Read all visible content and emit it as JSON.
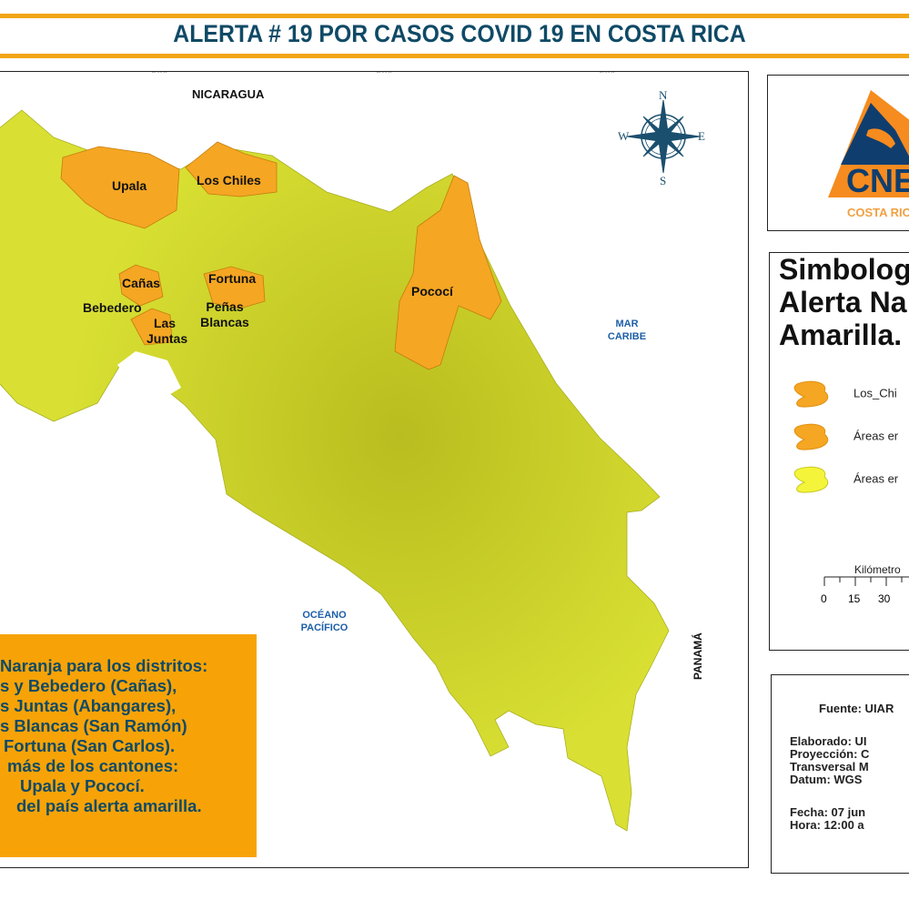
{
  "title": "ALERTA # 19 POR CASOS COVID 19 EN COSTA RICA",
  "colors": {
    "accent_bar": "#f2a516",
    "title": "#0f4a66",
    "alert_orange": "#f7a307",
    "alert_yellow": "#d9e033",
    "sea_label": "#1d5fa8"
  },
  "map": {
    "countries": {
      "north": "NICARAGUA",
      "south": "PANAMÁ"
    },
    "seas": {
      "caribbean": "MAR CARIBE",
      "pacific": "OCÉANO PACÍFICO"
    },
    "compass": {
      "n": "N",
      "s": "S",
      "e": "E",
      "w": "W"
    },
    "areas_orange": [
      "Upala",
      "Los Chiles",
      "Cañas",
      "Bebedero",
      "Las Juntas",
      "Fortuna",
      "Peñas Blancas",
      "Pococí"
    ]
  },
  "note": {
    "lines": [
      "Naranja para los distritos:",
      "s y Bebedero (Cañas),",
      "s Juntas (Abangares),",
      "s Blancas (San Ramón)",
      "Fortuna (San Carlos).",
      "más de los cantones:",
      "Upala y Pococí.",
      "del país alerta amarilla."
    ]
  },
  "logo": {
    "text": "CNE",
    "subtext": "COSTA RICA"
  },
  "legend": {
    "title_lines": [
      "Simbolog",
      "Alerta Na",
      "Amarilla."
    ],
    "items": [
      {
        "label": "Los_Chi",
        "color": "#f5a623"
      },
      {
        "label": "Áreas er",
        "color": "#f5a623"
      },
      {
        "label": "Áreas er",
        "color": "#f4f53a"
      }
    ],
    "scale": {
      "unit": "Kilómetro",
      "ticks": [
        "0",
        "15",
        "30"
      ]
    }
  },
  "info": {
    "fuente": "Fuente: UIAR",
    "elaborado": "Elaborado: UI",
    "proyeccion": "Proyección: C",
    "transversal": "Transversal M",
    "datum": "Datum: WGS",
    "fecha": "Fecha: 07 jun",
    "hora": "Hora: 12:00 a"
  }
}
